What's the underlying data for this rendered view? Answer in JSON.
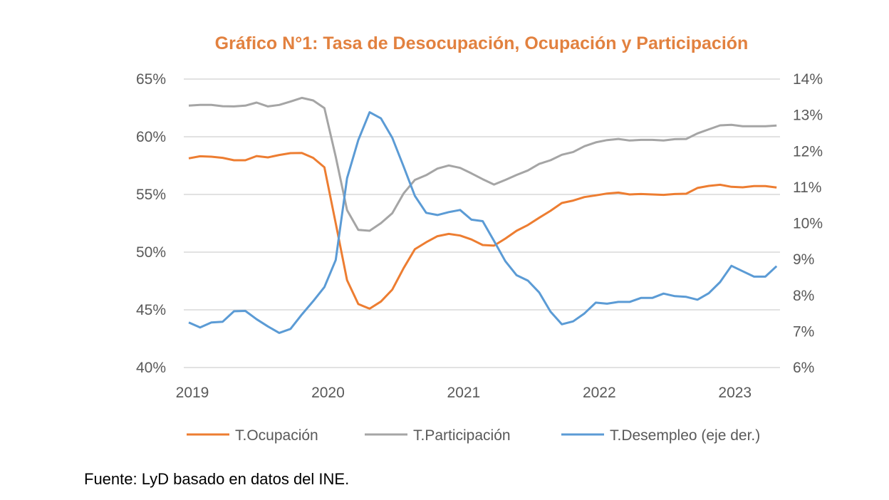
{
  "chart_data": {
    "type": "line",
    "title": "Gráfico N°1: Tasa de Desocupación, Ocupación y Participación",
    "xlabel": "",
    "ylabel": "",
    "x_start": "2019-01",
    "frequency": "monthly",
    "x_tick_labels": [
      "2019",
      "2020",
      "2021",
      "2022",
      "2023"
    ],
    "x_tick_index": [
      0,
      12,
      24,
      36,
      48
    ],
    "ylim_left": [
      40,
      65
    ],
    "ylim_right": [
      6,
      14
    ],
    "y_ticks_left": [
      "40%",
      "45%",
      "50%",
      "55%",
      "60%",
      "65%"
    ],
    "y_ticks_right": [
      "6%",
      "7%",
      "8%",
      "9%",
      "10%",
      "11%",
      "12%",
      "13%",
      "14%"
    ],
    "grid": true,
    "legend_position": "bottom",
    "series": [
      {
        "name": "T.Ocupación",
        "axis": "left",
        "color": "#ED7D31",
        "values": [
          58.13,
          58.31,
          58.27,
          58.17,
          57.96,
          57.96,
          58.33,
          58.21,
          58.42,
          58.58,
          58.6,
          58.17,
          57.35,
          52.5,
          47.57,
          45.5,
          45.1,
          45.72,
          46.75,
          48.6,
          50.25,
          50.86,
          51.38,
          51.58,
          51.44,
          51.1,
          50.62,
          50.56,
          51.17,
          51.85,
          52.35,
          52.98,
          53.58,
          54.26,
          54.47,
          54.77,
          54.92,
          55.08,
          55.16,
          55.0,
          55.04,
          55.0,
          54.96,
          55.04,
          55.06,
          55.56,
          55.74,
          55.84,
          55.66,
          55.62,
          55.72,
          55.72,
          55.6
        ]
      },
      {
        "name": "T.Participación",
        "axis": "left",
        "color": "#A5A5A5",
        "values": [
          62.7,
          62.76,
          62.76,
          62.65,
          62.63,
          62.7,
          62.96,
          62.63,
          62.76,
          63.05,
          63.37,
          63.15,
          62.49,
          58.27,
          53.64,
          51.93,
          51.85,
          52.51,
          53.37,
          55.08,
          56.26,
          56.67,
          57.24,
          57.51,
          57.3,
          56.83,
          56.32,
          55.86,
          56.26,
          56.69,
          57.08,
          57.65,
          57.96,
          58.44,
          58.68,
          59.18,
          59.51,
          59.71,
          59.81,
          59.67,
          59.73,
          59.73,
          59.67,
          59.79,
          59.81,
          60.29,
          60.64,
          60.99,
          61.03,
          60.91,
          60.91,
          60.91,
          60.97
        ]
      },
      {
        "name": "T.Desempleo (eje der.)",
        "axis": "right",
        "color": "#5B9BD5",
        "values": [
          7.25,
          7.11,
          7.25,
          7.27,
          7.56,
          7.57,
          7.34,
          7.14,
          6.96,
          7.07,
          7.47,
          7.84,
          8.23,
          8.98,
          11.25,
          12.31,
          13.08,
          12.91,
          12.37,
          11.58,
          10.76,
          10.29,
          10.23,
          10.31,
          10.37,
          10.1,
          10.06,
          9.51,
          8.95,
          8.56,
          8.41,
          8.08,
          7.55,
          7.2,
          7.28,
          7.5,
          7.8,
          7.77,
          7.82,
          7.82,
          7.93,
          7.93,
          8.05,
          7.98,
          7.96,
          7.88,
          8.06,
          8.37,
          8.82,
          8.67,
          8.52,
          8.52,
          8.81
        ]
      }
    ]
  },
  "source": "Fuente: LyD basado en datos del INE."
}
